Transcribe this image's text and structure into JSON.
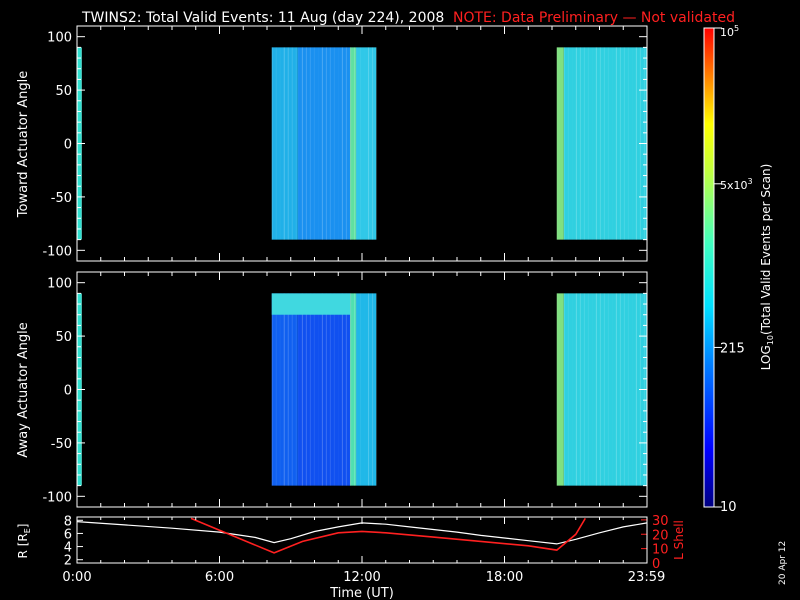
{
  "header": {
    "title": "TWINS2: Total Valid Events: 11 Aug (day 224), 2008",
    "note": "NOTE: Data Preliminary — Not validated"
  },
  "colorbar": {
    "label": "LOG10(Total Valid Events per Scan)",
    "label_main": "LOG",
    "label_sub": "10",
    "label_rest": "(Total Valid Events per Scan)",
    "ticks": [
      {
        "value": 10,
        "text": "10"
      },
      {
        "value": 215,
        "text": "215"
      },
      {
        "value": 5000,
        "text": "5x10",
        "sup": "3"
      },
      {
        "value": 100000,
        "text": "10",
        "sup": "5"
      }
    ],
    "scale": "log",
    "range": [
      10,
      100000
    ],
    "colormap": [
      "#000080",
      "#0000ff",
      "#0080ff",
      "#00e0ff",
      "#40ffc0",
      "#c0ff40",
      "#ffff00",
      "#ff8000",
      "#ff0000"
    ]
  },
  "footer": {
    "date_stamp": "20 Apr 12"
  },
  "chart_data": [
    {
      "type": "heatmap",
      "panel": "toward",
      "ylabel": "Toward Actuator Angle",
      "ylim": [
        -110,
        110
      ],
      "yticks": [
        100,
        50,
        0,
        -50,
        -100
      ],
      "xlim": [
        0,
        24
      ],
      "data_angle_range": [
        -90,
        90
      ],
      "data_blocks": [
        {
          "start_hr": 0.0,
          "end_hr": 0.2,
          "level": 300,
          "color": "#30e0d0"
        },
        {
          "start_hr": 8.2,
          "end_hr": 9.3,
          "level": 200,
          "color": "#20b0e8"
        },
        {
          "start_hr": 9.3,
          "end_hr": 11.5,
          "level": 150,
          "color": "#1a90f0"
        },
        {
          "start_hr": 11.5,
          "end_hr": 11.75,
          "level": 600,
          "color": "#60e0a0"
        },
        {
          "start_hr": 11.75,
          "end_hr": 12.6,
          "level": 250,
          "color": "#30c8e8"
        },
        {
          "start_hr": 20.2,
          "end_hr": 20.5,
          "level": 1500,
          "color": "#80e080"
        },
        {
          "start_hr": 20.5,
          "end_hr": 24.0,
          "level": 300,
          "color": "#30d0e0"
        }
      ]
    },
    {
      "type": "heatmap",
      "panel": "away",
      "ylabel": "Away Actuator Angle",
      "ylim": [
        -110,
        110
      ],
      "yticks": [
        100,
        50,
        0,
        -50,
        -100
      ],
      "xlim": [
        0,
        24
      ],
      "data_angle_range": [
        -90,
        90
      ],
      "data_blocks": [
        {
          "start_hr": 0.0,
          "end_hr": 0.2,
          "level": 300,
          "color": "#30e0d0"
        },
        {
          "start_hr": 8.2,
          "end_hr": 9.3,
          "level": 90,
          "color": "#1060f0"
        },
        {
          "start_hr": 9.3,
          "end_hr": 11.5,
          "level": 70,
          "color": "#1050f0"
        },
        {
          "start_hr": 11.5,
          "end_hr": 11.75,
          "level": 500,
          "color": "#50e0b0"
        },
        {
          "start_hr": 11.75,
          "end_hr": 12.6,
          "level": 200,
          "color": "#20b8e8"
        },
        {
          "start_hr": 20.2,
          "end_hr": 20.5,
          "level": 1500,
          "color": "#80e080"
        },
        {
          "start_hr": 20.5,
          "end_hr": 24.0,
          "level": 300,
          "color": "#30d0e0"
        }
      ],
      "high_angle_band": {
        "angle_range": [
          70,
          90
        ],
        "start_hr": 8.2,
        "end_hr": 11.5,
        "color": "#40d8e0"
      }
    },
    {
      "type": "line",
      "panel": "orbit",
      "xlabel": "Time (UT)",
      "xlim": [
        0,
        24
      ],
      "xticks": [
        {
          "value": 0,
          "text": "0:00"
        },
        {
          "value": 6,
          "text": "6:00"
        },
        {
          "value": 12,
          "text": "12:00"
        },
        {
          "value": 18,
          "text": "18:00"
        },
        {
          "value": 23.98,
          "text": "23:59"
        }
      ],
      "ylabel_left": "R [RE]",
      "ylabel_left_main": "R [R",
      "ylabel_left_sub": "E",
      "ylabel_left_end": "]",
      "ylim_left": [
        1.5,
        8.5
      ],
      "yticks_left": [
        2,
        4,
        6,
        8
      ],
      "ylabel_right": "L Shell",
      "ylim_right": [
        0,
        32
      ],
      "yticks_right": [
        0,
        10,
        20,
        30
      ],
      "series": [
        {
          "name": "R [RE]",
          "axis": "left",
          "color": "#ffffff",
          "x": [
            0,
            2,
            4,
            6,
            7.5,
            8.3,
            9,
            10,
            11,
            12,
            13,
            14,
            15,
            16,
            17,
            18,
            19,
            20.2,
            21,
            22,
            23,
            24
          ],
          "y": [
            7.8,
            7.3,
            6.8,
            6.2,
            5.4,
            4.6,
            5.2,
            6.3,
            7.0,
            7.6,
            7.4,
            7.0,
            6.6,
            6.2,
            5.7,
            5.3,
            4.9,
            4.4,
            5.1,
            6.1,
            7.0,
            7.6
          ]
        },
        {
          "name": "L Shell",
          "axis": "right",
          "color": "#ff2020",
          "x": [
            4.8,
            8.3,
            9.5,
            11,
            12,
            13,
            15,
            17,
            19,
            20.2,
            21,
            21.4
          ],
          "y": [
            31,
            7,
            15,
            21,
            22,
            21,
            18,
            15,
            12,
            9,
            20,
            31
          ]
        }
      ]
    }
  ]
}
